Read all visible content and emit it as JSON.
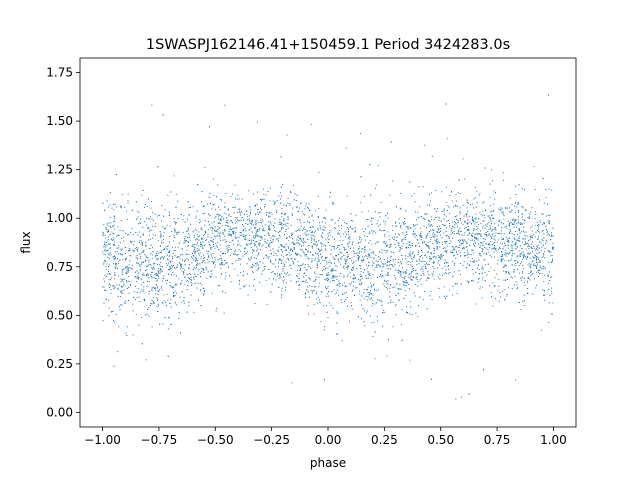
{
  "chart_data": {
    "type": "scatter",
    "title": "1SWASPJ162146.41+150459.1 Period 3424283.0s",
    "xlabel": "phase",
    "ylabel": "flux",
    "xlim": [
      -1.1,
      1.1
    ],
    "ylim": [
      -0.075,
      1.825
    ],
    "x_ticks": [
      -1.0,
      -0.75,
      -0.5,
      -0.25,
      0.0,
      0.25,
      0.5,
      0.75,
      1.0
    ],
    "x_tick_labels": [
      "−1.00",
      "−0.75",
      "−0.50",
      "−0.25",
      "0.00",
      "0.25",
      "0.50",
      "0.75",
      "1.00"
    ],
    "y_ticks": [
      0.0,
      0.25,
      0.5,
      0.75,
      1.0,
      1.25,
      1.5,
      1.75
    ],
    "y_tick_labels": [
      "0.00",
      "0.25",
      "0.50",
      "0.75",
      "1.00",
      "1.25",
      "1.50",
      "1.75"
    ],
    "grid": false,
    "marker_color": "#1f77b4",
    "series": [
      {
        "phase": [
          -1.0,
          -0.95,
          -0.9,
          -0.85,
          -0.8,
          -0.75,
          -0.7,
          -0.65,
          -0.6,
          -0.55,
          -0.5,
          -0.45,
          -0.4,
          -0.35,
          -0.3,
          -0.25,
          -0.2,
          -0.15,
          -0.1,
          -0.05,
          0.0,
          0.05,
          0.1,
          0.15,
          0.2,
          0.25,
          0.3,
          0.35,
          0.4,
          0.45,
          0.5,
          0.55,
          0.6,
          0.65,
          0.7,
          0.75,
          0.8,
          0.85,
          0.9,
          0.95,
          1.0
        ],
        "flux_center": [
          0.82,
          0.8,
          0.78,
          0.77,
          0.76,
          0.76,
          0.77,
          0.79,
          0.82,
          0.85,
          0.88,
          0.9,
          0.9,
          0.89,
          0.88,
          0.87,
          0.86,
          0.85,
          0.83,
          0.8,
          0.78,
          0.77,
          0.76,
          0.76,
          0.76,
          0.77,
          0.78,
          0.8,
          0.83,
          0.86,
          0.88,
          0.9,
          0.9,
          0.89,
          0.88,
          0.87,
          0.86,
          0.85,
          0.84,
          0.83,
          0.82
        ],
        "flux_spread": [
          0.18,
          0.17,
          0.17,
          0.18,
          0.18,
          0.18,
          0.18,
          0.17,
          0.16,
          0.15,
          0.14,
          0.14,
          0.14,
          0.14,
          0.14,
          0.15,
          0.15,
          0.15,
          0.15,
          0.16,
          0.17,
          0.17,
          0.17,
          0.17,
          0.17,
          0.17,
          0.17,
          0.16,
          0.15,
          0.14,
          0.14,
          0.14,
          0.14,
          0.14,
          0.14,
          0.15,
          0.15,
          0.15,
          0.15,
          0.16,
          0.18
        ]
      }
    ]
  }
}
